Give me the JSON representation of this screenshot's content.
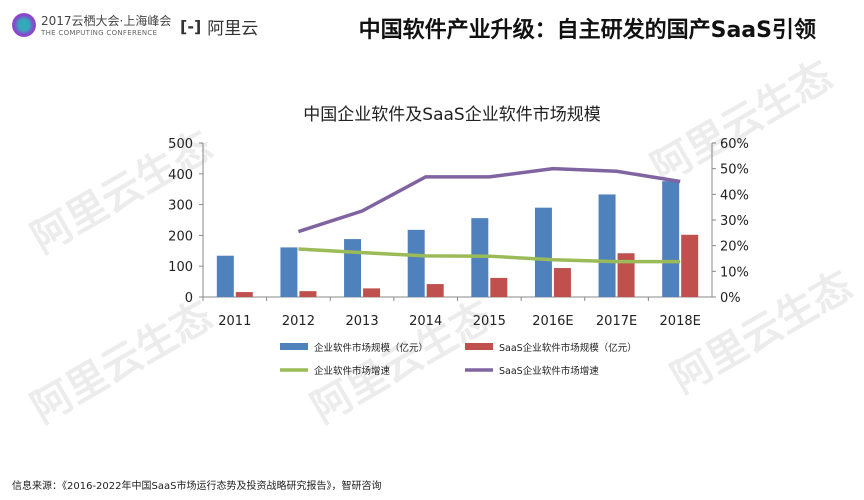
{
  "header": {
    "event_line1": "2017云栖大会·上海峰会",
    "event_line2": "THE COMPUTING CONFERENCE",
    "brand": "阿里云",
    "brand_icon": "aliyun-bracket-icon",
    "title": "中国软件产业升级：自主研发的国产SaaS引领"
  },
  "watermark": "阿里云生态",
  "footer": "信息来源：《2016-2022年中国SaaS市场运行态势及投资战略研究报告》，智研咨询",
  "chart_data": {
    "type": "bar+line",
    "title": "中国企业软件及SaaS企业软件市场规模",
    "categories": [
      "2011",
      "2012",
      "2013",
      "2014",
      "2015",
      "2016E",
      "2017E",
      "2018E"
    ],
    "y_left": {
      "range": [
        0,
        500
      ],
      "ticks": [
        "0",
        "100",
        "200",
        "300",
        "400",
        "500"
      ]
    },
    "y_right": {
      "range": [
        0,
        60
      ],
      "ticks": [
        "0%",
        "10%",
        "20%",
        "30%",
        "40%",
        "50%",
        "60%"
      ]
    },
    "series": [
      {
        "name": "企业软件市场规模（亿元）",
        "type": "bar",
        "axis": "left",
        "color": "#4f81bd",
        "values": [
          134,
          161,
          188,
          218,
          256,
          290,
          333,
          376
        ]
      },
      {
        "name": "SaaS企业软件市场规模（亿元）",
        "type": "bar",
        "axis": "left",
        "color": "#c0504d",
        "values": [
          16,
          19,
          28,
          42,
          62,
          94,
          142,
          202
        ]
      },
      {
        "name": "企业软件市场增速",
        "type": "line",
        "axis": "right",
        "color": "#9bbb59",
        "values": [
          null,
          18.7,
          17.3,
          16.0,
          15.9,
          14.5,
          13.8,
          13.8
        ]
      },
      {
        "name": "SaaS企业软件市场增速",
        "type": "line",
        "axis": "right",
        "color": "#8064a2",
        "values": [
          null,
          25.5,
          33.5,
          46.8,
          46.8,
          50.0,
          49.0,
          45.0
        ]
      }
    ],
    "grid": false,
    "legend": "bottom"
  }
}
